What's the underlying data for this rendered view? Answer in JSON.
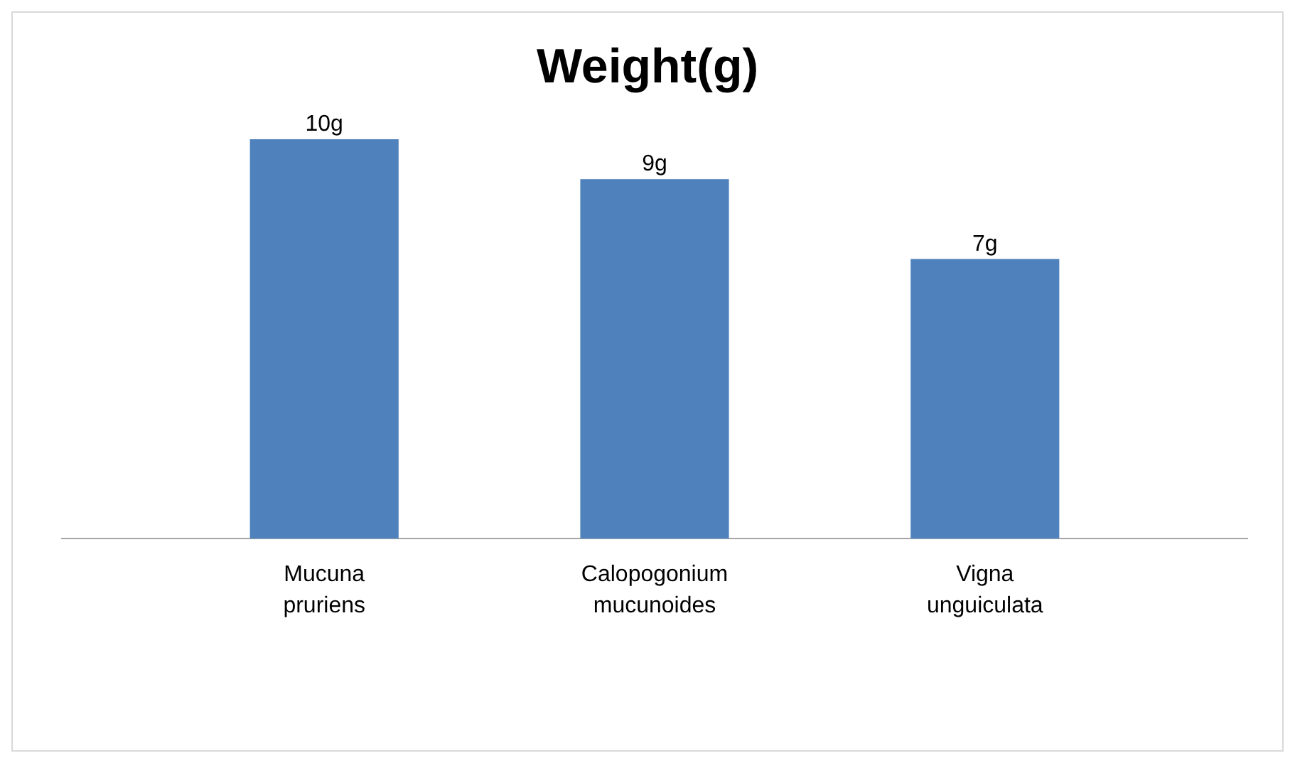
{
  "chart_data": {
    "type": "bar",
    "title": "Weight(g)",
    "categories": [
      "Mucuna pruriens",
      "Calopogonium mucunoides",
      "Vigna unguiculata"
    ],
    "values": [
      10,
      9,
      7
    ],
    "value_labels": [
      "10g",
      "9g",
      "7g"
    ],
    "color": "#4f81bd"
  }
}
